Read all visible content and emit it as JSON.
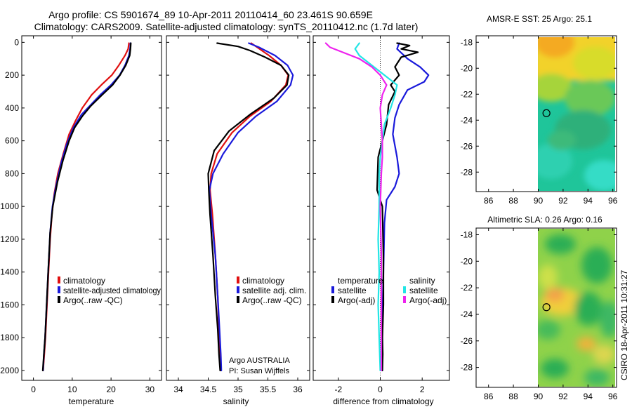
{
  "header": {
    "line1": "Argo profile: CS 5901674_89 10-Apr-2011 20110414_60 23.461S 90.659E",
    "line2": "Climatology: CARS2009. Satellite-adjusted climatology: synTS_20110412.nc (1.7d later)"
  },
  "side_stamp": "CSIRO 18-Apr-2011 10:31:27",
  "colors": {
    "red": "#e01010",
    "blue": "#1a1adb",
    "black": "#000000",
    "cyan": "#22e5e5",
    "magenta": "#ee22ee"
  },
  "chart_data": [
    {
      "id": "temperature",
      "type": "line",
      "xlabel": "temperature",
      "xlim": [
        -3,
        33
      ],
      "xticks": [
        0,
        10,
        20,
        30
      ],
      "ylim": [
        2060,
        -40
      ],
      "yticks": [
        0,
        200,
        400,
        600,
        800,
        1000,
        1200,
        1400,
        1600,
        1800,
        2000
      ],
      "legend": [
        "climatology",
        "satellite-adjusted climatology",
        "Argo(..raw -QC)"
      ],
      "series": [
        {
          "name": "climatology",
          "color": "red",
          "x": [
            24.6,
            24.4,
            23.6,
            22.0,
            20.2,
            17.5,
            15.0,
            12.6,
            10.8,
            9.2,
            7.7,
            6.3,
            5.4,
            4.8,
            4.3,
            3.9,
            3.5,
            3.1,
            2.8,
            2.5
          ],
          "y": [
            5,
            40,
            80,
            140,
            200,
            260,
            320,
            400,
            480,
            560,
            680,
            800,
            920,
            1040,
            1200,
            1400,
            1600,
            1800,
            1900,
            2000
          ]
        },
        {
          "name": "satellite-adjusted climatology",
          "color": "blue",
          "x": [
            25.0,
            24.9,
            24.6,
            23.6,
            22.2,
            20.0,
            17.2,
            14.8,
            12.4,
            10.3,
            8.6,
            7.1,
            5.8,
            4.9,
            4.3,
            3.8,
            3.4,
            3.0,
            2.7,
            2.5
          ],
          "y": [
            5,
            40,
            80,
            140,
            200,
            260,
            320,
            380,
            440,
            520,
            620,
            740,
            880,
            1000,
            1160,
            1400,
            1600,
            1800,
            1900,
            2000
          ]
        },
        {
          "name": "Argo(..raw -QC)",
          "color": "black",
          "x": [
            25.1,
            25.0,
            24.8,
            23.8,
            22.3,
            20.4,
            17.7,
            14.7,
            12.6,
            10.6,
            9.2,
            7.6,
            6.2,
            5.0,
            4.3,
            3.8,
            3.4,
            3.0,
            2.7,
            2.4
          ],
          "y": [
            5,
            40,
            80,
            140,
            200,
            260,
            320,
            390,
            450,
            520,
            600,
            720,
            850,
            1000,
            1160,
            1400,
            1600,
            1800,
            1900,
            2000
          ]
        }
      ]
    },
    {
      "id": "salinity",
      "type": "line",
      "xlabel": "salinity",
      "xlim": [
        33.8,
        36.2
      ],
      "xticks": [
        34,
        34.5,
        35,
        35.5,
        36
      ],
      "xtick_labels": [
        "34",
        "34.5",
        "35",
        "35.5",
        "36"
      ],
      "ylim": [
        2060,
        -40
      ],
      "legend": [
        "climatology",
        "satellite adj. clim.",
        "Argo(..raw -QC)"
      ],
      "annotation": [
        "Argo AUSTRALIA",
        "PI: Susan Wijffels"
      ],
      "series": [
        {
          "name": "climatology",
          "color": "red",
          "x": [
            35.22,
            35.32,
            35.52,
            35.72,
            35.84,
            35.8,
            35.55,
            35.2,
            34.9,
            34.65,
            34.55,
            34.53,
            34.57,
            34.62,
            34.66,
            34.68,
            34.7,
            34.71
          ],
          "y": [
            5,
            30,
            80,
            140,
            200,
            260,
            360,
            450,
            550,
            680,
            800,
            900,
            1050,
            1300,
            1550,
            1750,
            1900,
            2000
          ]
        },
        {
          "name": "satellite adj. clim.",
          "color": "blue",
          "x": [
            35.18,
            35.35,
            35.62,
            35.83,
            35.92,
            35.88,
            35.65,
            35.3,
            35.0,
            34.75,
            34.58,
            34.52,
            34.55,
            34.62,
            34.66,
            34.69,
            34.71,
            34.72
          ],
          "y": [
            5,
            30,
            80,
            140,
            200,
            260,
            360,
            450,
            550,
            680,
            800,
            900,
            1050,
            1300,
            1550,
            1750,
            1900,
            2000
          ]
        },
        {
          "name": "Argo(..raw -QC)",
          "color": "black",
          "x": [
            34.65,
            35.0,
            35.2,
            35.45,
            35.72,
            35.85,
            35.82,
            35.6,
            35.2,
            34.85,
            34.6,
            34.5,
            34.51,
            34.53,
            34.58,
            34.62,
            34.66,
            34.68,
            34.7
          ],
          "y": [
            5,
            25,
            50,
            90,
            140,
            200,
            260,
            340,
            440,
            540,
            660,
            800,
            900,
            1050,
            1300,
            1550,
            1750,
            1900,
            2000
          ]
        }
      ]
    },
    {
      "id": "difference",
      "type": "line",
      "xlabel": "difference from climatology",
      "xlim": [
        -3.2,
        3.3
      ],
      "xticks": [
        -2,
        0,
        2
      ],
      "ylim": [
        2060,
        -40
      ],
      "legend_temperature_title": "temperature",
      "legend_salinity_title": "salinity",
      "legend": [
        "satellite",
        "Argo(-adj)",
        "satellite",
        "Argo(-adj)"
      ],
      "series": [
        {
          "name": "temperature satellite",
          "color": "blue",
          "x": [
            0.9,
            0.8,
            1.3,
            1.9,
            2.3,
            2.1,
            1.3,
            0.9,
            0.7,
            0.6,
            0.8,
            0.9,
            0.7,
            0.3,
            0.2,
            0.15,
            0.1,
            0.1,
            0.1
          ],
          "y": [
            5,
            40,
            100,
            150,
            200,
            240,
            290,
            380,
            460,
            560,
            700,
            800,
            880,
            960,
            1100,
            1400,
            1700,
            1900,
            2000
          ]
        },
        {
          "name": "temperature Argo(-adj)",
          "color": "black",
          "x": [
            0.8,
            1.4,
            1.0,
            1.8,
            1.0,
            0.7,
            0.9,
            0.5,
            0.7,
            0.4,
            0.3,
            0.1,
            -0.1,
            -0.15,
            0.1,
            0.15,
            0.15,
            0.1,
            0.12,
            0.1
          ],
          "y": [
            5,
            20,
            40,
            60,
            90,
            150,
            200,
            260,
            300,
            380,
            500,
            600,
            700,
            900,
            1000,
            1300,
            1600,
            1800,
            1900,
            2000
          ]
        },
        {
          "name": "salinity satellite",
          "color": "cyan",
          "x": [
            -1.0,
            -1.2,
            -1.0,
            -0.4,
            0.2,
            0.8,
            0.7,
            0.5,
            0.2,
            0.1,
            0.0,
            -0.05,
            -0.05,
            -0.1,
            -0.05,
            -0.1,
            -0.05,
            0.0
          ],
          "y": [
            5,
            40,
            80,
            140,
            200,
            260,
            320,
            400,
            500,
            600,
            700,
            800,
            1000,
            1200,
            1400,
            1600,
            1800,
            2000
          ]
        },
        {
          "name": "salinity Argo(-adj)",
          "color": "magenta",
          "x": [
            -2.6,
            -2.4,
            -1.8,
            -1.0,
            -0.4,
            0.0,
            0.3,
            0.1,
            0.0,
            0.05,
            0.1,
            0.1,
            0.05,
            0.0,
            0.05,
            0.05,
            0.05,
            0.05
          ],
          "y": [
            5,
            30,
            60,
            100,
            150,
            200,
            260,
            320,
            400,
            500,
            600,
            700,
            800,
            1000,
            1300,
            1600,
            1800,
            2000
          ]
        }
      ]
    },
    {
      "id": "amsre_sst_map",
      "type": "heatmap",
      "title": "AMSR-E SST: 25 Argo: 25.1",
      "xlim": [
        85,
        96.3
      ],
      "ylim": [
        -29.5,
        -17.5
      ],
      "xticks": [
        86,
        88,
        90,
        92,
        94,
        96
      ],
      "yticks": [
        -18,
        -20,
        -22,
        -24,
        -26,
        -28
      ],
      "data_lon_range": [
        90,
        96.3
      ],
      "marker": {
        "lon": 90.659,
        "lat": -23.461
      }
    },
    {
      "id": "altimetric_sla_map",
      "type": "heatmap",
      "title": "Altimetric SLA: 0.26 Argo: 0.16",
      "xlim": [
        85,
        96.3
      ],
      "ylim": [
        -29.5,
        -17.5
      ],
      "xticks": [
        86,
        88,
        90,
        92,
        94,
        96
      ],
      "yticks": [
        -18,
        -20,
        -22,
        -24,
        -26,
        -28
      ],
      "data_lon_range": [
        90,
        96.3
      ],
      "marker": {
        "lon": 90.659,
        "lat": -23.461
      }
    }
  ]
}
